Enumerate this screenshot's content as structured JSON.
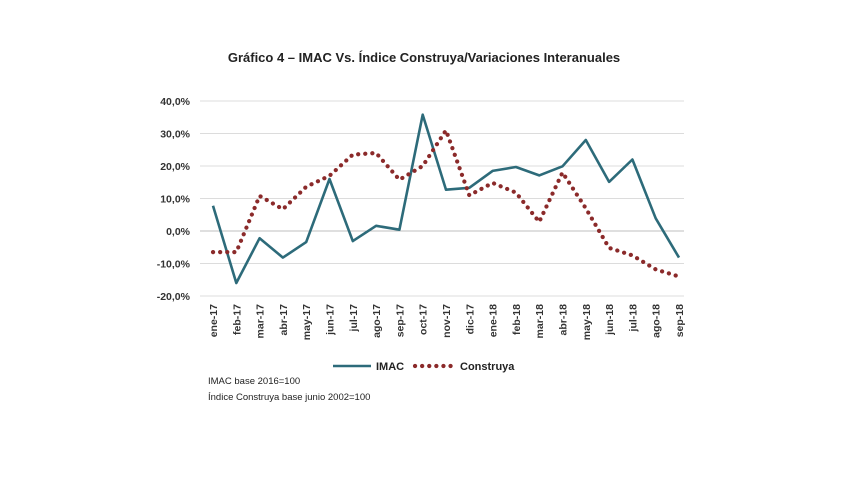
{
  "chart_data": {
    "type": "line",
    "title": "Gráfico 4 – IMAC Vs. Índice Construya/Variaciones Interanuales",
    "categories": [
      "ene-17",
      "feb-17",
      "mar-17",
      "abr-17",
      "may-17",
      "jun-17",
      "jul-17",
      "ago-17",
      "sep-17",
      "oct-17",
      "nov-17",
      "dic-17",
      "ene-18",
      "feb-18",
      "mar-18",
      "abr-18",
      "may-18",
      "jun-18",
      "jul-18",
      "ago-18",
      "sep-18"
    ],
    "y_ticks": [
      "40,0%",
      "30,0%",
      "20,0%",
      "10,0%",
      "0,0%",
      "-10,0%",
      "-20,0%"
    ],
    "ylim": [
      -20,
      40
    ],
    "grid": true,
    "legend_position": "bottom",
    "series": [
      {
        "name": "IMAC",
        "color": "#2d6b7a",
        "style": "solid",
        "values": [
          7.8,
          -16.0,
          -2.2,
          -8.2,
          -3.4,
          16.0,
          -3.1,
          1.6,
          0.4,
          35.8,
          12.7,
          13.3,
          18.5,
          19.7,
          17.1,
          19.9,
          28.0,
          15.1,
          22.0,
          3.9,
          -8.2
        ]
      },
      {
        "name": "Construya",
        "color": "#8b2a2a",
        "style": "dotted",
        "values": [
          -6.5,
          -6.5,
          10.8,
          6.7,
          13.6,
          17.0,
          23.5,
          24.0,
          15.8,
          20.0,
          31.0,
          11.0,
          14.8,
          11.8,
          2.8,
          18.0,
          7.0,
          -5.2,
          -7.5,
          -11.8,
          -14.0
        ]
      }
    ]
  },
  "notes": {
    "line1": "IMAC base 2016=100",
    "line2": "Índice Construya base junio 2002=100"
  }
}
